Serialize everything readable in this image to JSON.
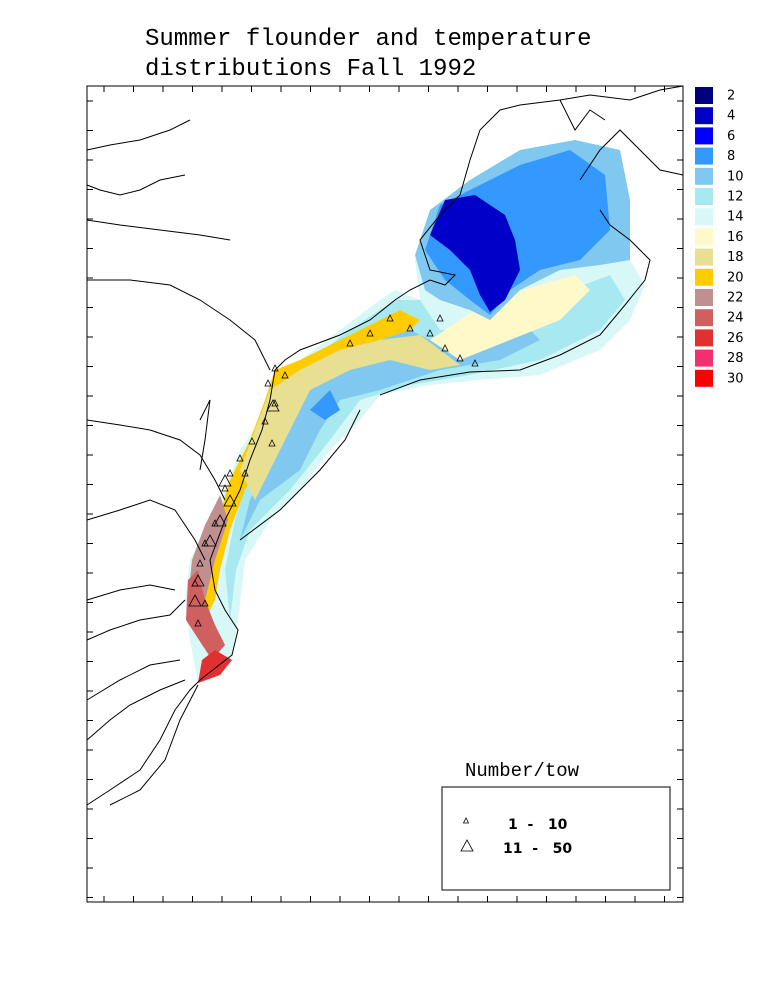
{
  "title": [
    "Summer flounder and temperature",
    "distributions Fall 1992"
  ],
  "temperature_legend": [
    {
      "label": 2,
      "color": "#00007f"
    },
    {
      "label": 4,
      "color": "#0000c8"
    },
    {
      "label": 6,
      "color": "#0000ff"
    },
    {
      "label": 8,
      "color": "#3399ff"
    },
    {
      "label": 10,
      "color": "#80c8f0"
    },
    {
      "label": 12,
      "color": "#a8e8f0"
    },
    {
      "label": 14,
      "color": "#d8f8f8"
    },
    {
      "label": 16,
      "color": "#fff8c8"
    },
    {
      "label": 18,
      "color": "#e8e090"
    },
    {
      "label": 20,
      "color": "#ffcc00"
    },
    {
      "label": 22,
      "color": "#c09090"
    },
    {
      "label": 24,
      "color": "#d06060"
    },
    {
      "label": 26,
      "color": "#e03030"
    },
    {
      "label": 28,
      "color": "#f03070"
    },
    {
      "label": 30,
      "color": "#ff0000"
    }
  ],
  "catch_legend": {
    "title": "Number/tow",
    "entries": [
      "1  -   10",
      "11  -   50"
    ]
  }
}
